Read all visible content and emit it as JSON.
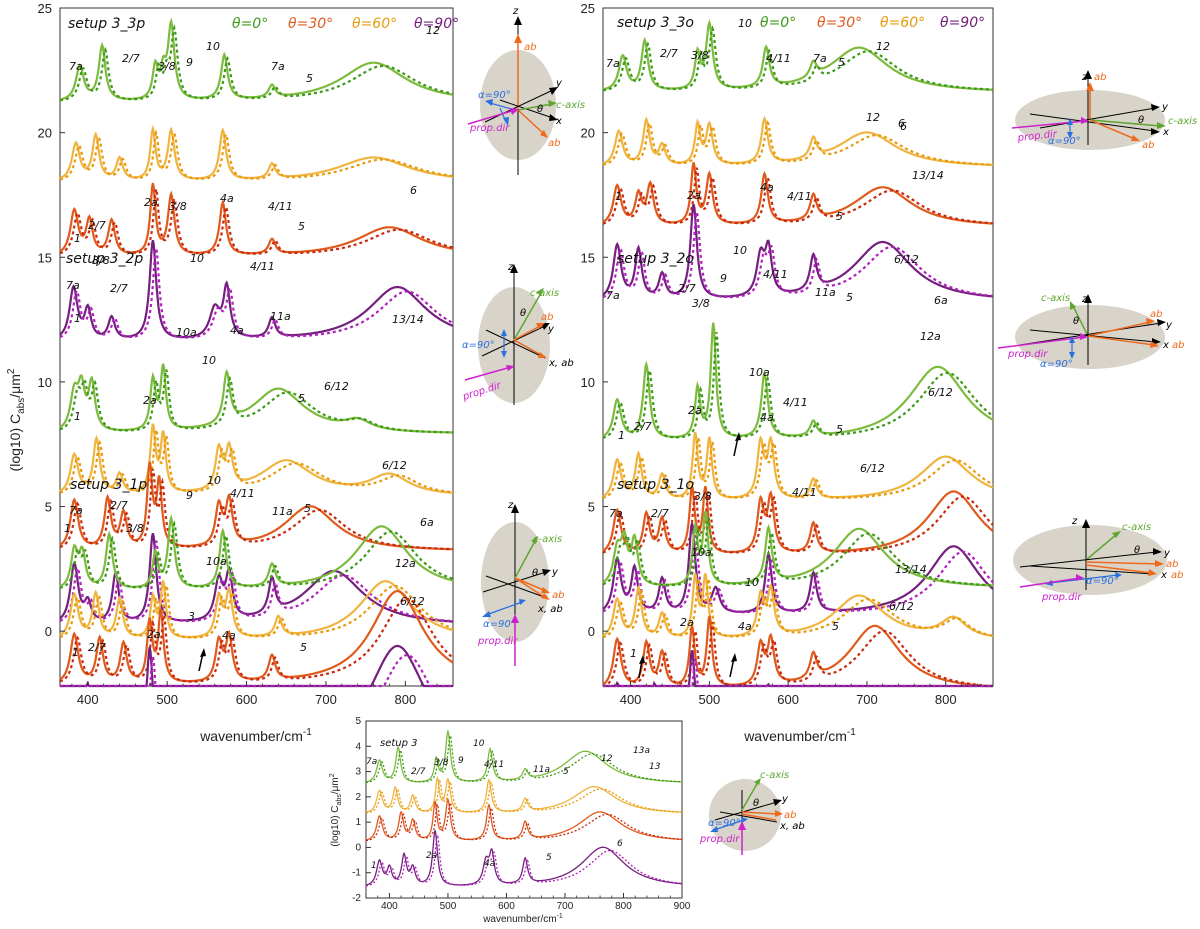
{
  "colors": {
    "t0": "#3c9a18",
    "t30": "#c82a10",
    "t60": "#e79a0c",
    "t90": "#74207e",
    "t0_alt": "#7dbb3e",
    "t30_alt": "#e05a1c",
    "t60_alt": "#f0b440",
    "t90_alt": "#b020bc",
    "ellipse": "#d9d4ca",
    "axis": "#000000",
    "caxis": "#5ea62e",
    "ab": "#ee6a1a",
    "alpha": "#2a6fe0",
    "prop": "#cc22cc"
  },
  "legend": {
    "t0": "θ=0°",
    "t30": "θ=30°",
    "t60": "θ=60°",
    "t90": "θ=90°"
  },
  "axis_labels": {
    "ylabel": "(log10) C",
    "ysub": "abs",
    "yunit": "/μm",
    "ysup": "2",
    "xlabel": "wavenumber/cm",
    "xsup": "-1"
  },
  "diagram_labels": {
    "z": "z",
    "y": "y",
    "x": "x",
    "ab": "ab",
    "caxis": "c-axis",
    "alpha": "α=90°",
    "prop": "prop.dir",
    "theta": "θ",
    "xab": "x, ab"
  },
  "chart_data": [
    {
      "type": "line",
      "panel": "left",
      "xlim": [
        365,
        860
      ],
      "ylim": [
        -2.2,
        25
      ],
      "xticks": [
        400,
        500,
        600,
        700,
        800
      ],
      "yticks": [
        0,
        5,
        10,
        15,
        20,
        25
      ],
      "xlabel": "wavenumber/cm-1",
      "ylabel": "(log10) Cabs/μm2",
      "subtitles": [
        {
          "text": "setup 3_3p"
        },
        {
          "text": "setup 3_2p"
        },
        {
          "text": "setup 3_1p"
        }
      ],
      "annotations": [
        {
          "text": "7a"
        },
        {
          "text": "2/7"
        },
        {
          "text": "3/8"
        },
        {
          "text": "9"
        },
        {
          "text": "10"
        },
        {
          "text": "7a"
        },
        {
          "text": "5"
        },
        {
          "text": "12"
        },
        {
          "text": "2/7"
        },
        {
          "text": "2a"
        },
        {
          "text": "1"
        },
        {
          "text": "3/8"
        },
        {
          "text": "4a"
        },
        {
          "text": "4/11"
        },
        {
          "text": "5"
        },
        {
          "text": "6"
        },
        {
          "text": "3/8"
        },
        {
          "text": "10"
        },
        {
          "text": "7a"
        },
        {
          "text": "2/7"
        },
        {
          "text": "1"
        },
        {
          "text": "4/11"
        },
        {
          "text": "10a"
        },
        {
          "text": "4a"
        },
        {
          "text": "11a"
        },
        {
          "text": "10"
        },
        {
          "text": "13/14"
        },
        {
          "text": "1"
        },
        {
          "text": "2a"
        },
        {
          "text": "5"
        },
        {
          "text": "6/12"
        },
        {
          "text": "6/12"
        },
        {
          "text": "10"
        },
        {
          "text": "7a"
        },
        {
          "text": "2/7"
        },
        {
          "text": "9"
        },
        {
          "text": "4/11"
        },
        {
          "text": "11a"
        },
        {
          "text": "5"
        },
        {
          "text": "1"
        },
        {
          "text": "3/8"
        },
        {
          "text": "6a"
        },
        {
          "text": "10a"
        },
        {
          "text": "12a"
        },
        {
          "text": "3"
        },
        {
          "text": "2a"
        },
        {
          "text": "4a"
        },
        {
          "text": "6/12"
        },
        {
          "text": "1"
        },
        {
          "text": "2/7"
        },
        {
          "text": "5"
        }
      ]
    },
    {
      "type": "line",
      "panel": "right",
      "xlim": [
        365,
        860
      ],
      "ylim": [
        -2.2,
        25
      ],
      "xticks": [
        400,
        500,
        600,
        700,
        800
      ],
      "yticks": [
        0,
        5,
        10,
        15,
        20,
        25
      ],
      "xlabel": "wavenumber/cm-1",
      "subtitles": [
        {
          "text": "setup 3_3o"
        },
        {
          "text": "setup 3_2o"
        },
        {
          "text": "setup 3_1o"
        }
      ],
      "annotations": [
        {
          "text": "7a"
        },
        {
          "text": "2/7"
        },
        {
          "text": "3/8"
        },
        {
          "text": "10"
        },
        {
          "text": "4/11"
        },
        {
          "text": "7a"
        },
        {
          "text": "5"
        },
        {
          "text": "12"
        },
        {
          "text": "12"
        },
        {
          "text": "6"
        },
        {
          "text": "1"
        },
        {
          "text": "2a"
        },
        {
          "text": "4a"
        },
        {
          "text": "4/11"
        },
        {
          "text": "5"
        },
        {
          "text": "6"
        },
        {
          "text": "13/14"
        },
        {
          "text": "10"
        },
        {
          "text": "6/12"
        },
        {
          "text": "7a"
        },
        {
          "text": "2/7"
        },
        {
          "text": "9"
        },
        {
          "text": "4/11"
        },
        {
          "text": "3/8"
        },
        {
          "text": "11a"
        },
        {
          "text": "5"
        },
        {
          "text": "6a"
        },
        {
          "text": "12a"
        },
        {
          "text": "10a"
        },
        {
          "text": "1"
        },
        {
          "text": "2/7"
        },
        {
          "text": "2a"
        },
        {
          "text": "4a"
        },
        {
          "text": "4/11"
        },
        {
          "text": "5"
        },
        {
          "text": "6/12"
        },
        {
          "text": "6/12"
        },
        {
          "text": "3/8"
        },
        {
          "text": "7a"
        },
        {
          "text": "2/7"
        },
        {
          "text": "4/11"
        },
        {
          "text": "10a"
        },
        {
          "text": "10"
        },
        {
          "text": "13/14"
        },
        {
          "text": "1"
        },
        {
          "text": "2a"
        },
        {
          "text": "4a"
        },
        {
          "text": "5"
        },
        {
          "text": "6/12"
        }
      ]
    },
    {
      "type": "line",
      "panel": "bottom",
      "xlim": [
        360,
        900
      ],
      "ylim": [
        -2,
        5
      ],
      "xticks": [
        400,
        500,
        600,
        700,
        800,
        900
      ],
      "yticks": [
        -2,
        -1,
        0,
        1,
        2,
        3,
        4,
        5
      ],
      "xlabel": "wavenumber/cm-1",
      "ylabel": "(log10) Cabs/μm2",
      "subtitles": [
        {
          "text": "setup 3"
        }
      ],
      "annotations": [
        {
          "text": "7a"
        },
        {
          "text": "2/7"
        },
        {
          "text": "3/8"
        },
        {
          "text": "9"
        },
        {
          "text": "10"
        },
        {
          "text": "4/11"
        },
        {
          "text": "11a"
        },
        {
          "text": "5"
        },
        {
          "text": "12"
        },
        {
          "text": "13a"
        },
        {
          "text": "13"
        },
        {
          "text": "1"
        },
        {
          "text": "2a"
        },
        {
          "text": "4a"
        },
        {
          "text": "5"
        },
        {
          "text": "6"
        }
      ]
    }
  ]
}
